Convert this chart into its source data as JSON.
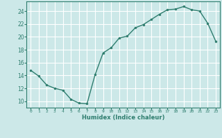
{
  "x": [
    0,
    1,
    2,
    3,
    4,
    5,
    6,
    7,
    8,
    9,
    10,
    11,
    12,
    13,
    14,
    15,
    16,
    17,
    18,
    19,
    20,
    21,
    22,
    23
  ],
  "y": [
    14.8,
    13.9,
    12.5,
    12.0,
    11.7,
    10.3,
    9.7,
    9.6,
    14.1,
    17.5,
    18.3,
    19.8,
    20.1,
    21.4,
    21.9,
    22.7,
    23.5,
    24.2,
    24.3,
    24.7,
    24.2,
    24.0,
    22.1,
    19.3
  ],
  "xlabel": "Humidex (Indice chaleur)",
  "xlim": [
    -0.5,
    23.5
  ],
  "ylim": [
    9.0,
    25.5
  ],
  "yticks": [
    10,
    12,
    14,
    16,
    18,
    20,
    22,
    24
  ],
  "xticks": [
    0,
    1,
    2,
    3,
    4,
    5,
    6,
    7,
    8,
    9,
    10,
    11,
    12,
    13,
    14,
    15,
    16,
    17,
    18,
    19,
    20,
    21,
    22,
    23
  ],
  "line_color": "#2e7d6e",
  "marker_color": "#2e7d6e",
  "bg_color": "#cce8e8",
  "grid_color": "#ffffff",
  "xlabel_color": "#2e7d6e",
  "tick_color": "#2e7d6e"
}
